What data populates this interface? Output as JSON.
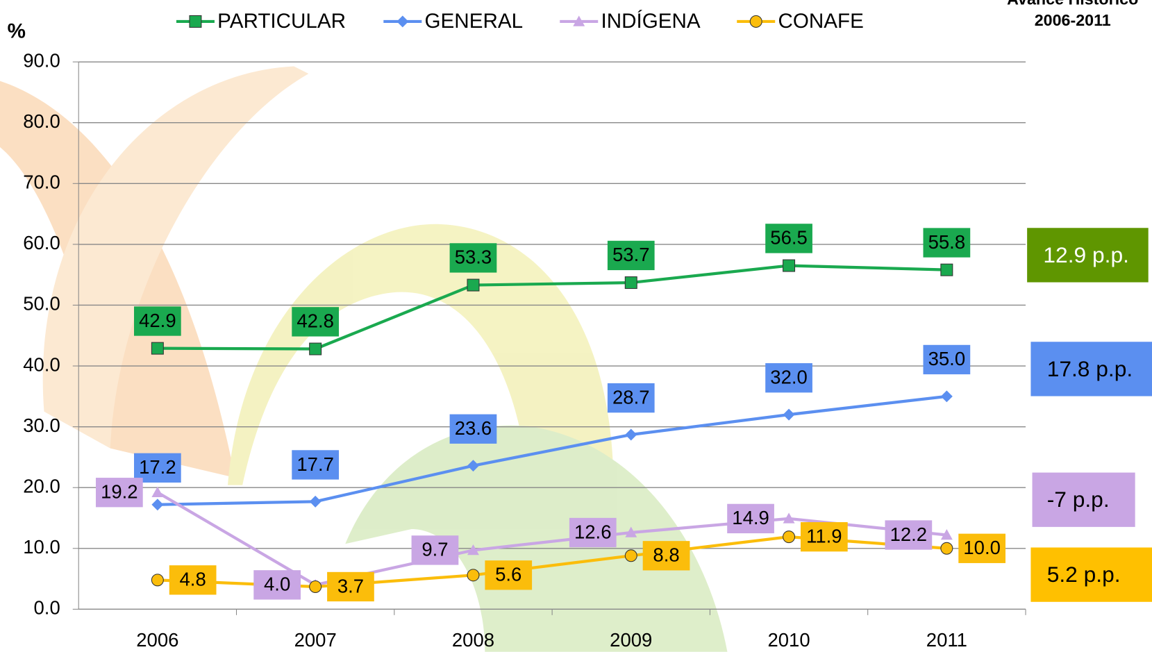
{
  "chart_data": {
    "type": "line",
    "title": "Avance Histórico",
    "subtitle": "2006-2011",
    "y_label": "%",
    "categories": [
      "2006",
      "2007",
      "2008",
      "2009",
      "2010",
      "2011"
    ],
    "series": [
      {
        "name": "PARTICULAR",
        "color": "#1aa94f",
        "marker": "square",
        "label_pos": "above",
        "values": [
          42.9,
          42.8,
          53.3,
          53.7,
          56.5,
          55.8
        ],
        "value_labels": [
          "42.9",
          "42.8",
          "53.3",
          "53.7",
          "56.5",
          "55.8"
        ]
      },
      {
        "name": "GENERAL",
        "color": "#5b8ff0",
        "marker": "diamond",
        "label_pos": "above",
        "values": [
          17.2,
          17.7,
          23.6,
          28.7,
          32.0,
          35.0
        ],
        "value_labels": [
          "17.2",
          "17.7",
          "23.6",
          "28.7",
          "32.0",
          "35.0"
        ]
      },
      {
        "name": "INDÍGENA",
        "color": "#c9a6e4",
        "marker": "triangle",
        "label_pos": "left",
        "values": [
          19.2,
          4.0,
          9.7,
          12.6,
          14.9,
          12.2
        ],
        "value_labels": [
          "19.2",
          "4.0",
          "9.7",
          "12.6",
          "14.9",
          "12.2"
        ]
      },
      {
        "name": "CONAFE",
        "color": "#fbbd0b",
        "marker": "circle",
        "label_pos": "right",
        "values": [
          4.8,
          3.7,
          5.6,
          8.8,
          11.9,
          10.0
        ],
        "value_labels": [
          "4.8",
          "3.7",
          "5.6",
          "8.8",
          "11.9",
          "10.0"
        ]
      }
    ],
    "annotations": [
      {
        "text": "12.9 p.p.",
        "color": "#5f9600",
        "text_color": "#ffffff"
      },
      {
        "text": "17.8 p.p.",
        "color": "#5b8ff0",
        "text_color": "#000000"
      },
      {
        "text": "-7 p.p.",
        "color": "#c9a6e4",
        "text_color": "#000000"
      },
      {
        "text": "5.2 p.p.",
        "color": "#ffc000",
        "text_color": "#000000"
      }
    ],
    "ylim": [
      0,
      90
    ],
    "yticks": [
      {
        "value": 0,
        "label": "0.0"
      },
      {
        "value": 10,
        "label": "10.0"
      },
      {
        "value": 20,
        "label": "20.0"
      },
      {
        "value": 30,
        "label": "30.0"
      },
      {
        "value": 40,
        "label": "40.0"
      },
      {
        "value": 50,
        "label": "50.0"
      },
      {
        "value": 60,
        "label": "60.0"
      },
      {
        "value": 70,
        "label": "70.0"
      },
      {
        "value": 80,
        "label": "80.0"
      },
      {
        "value": 90,
        "label": "90.0"
      }
    ],
    "grid": true
  }
}
